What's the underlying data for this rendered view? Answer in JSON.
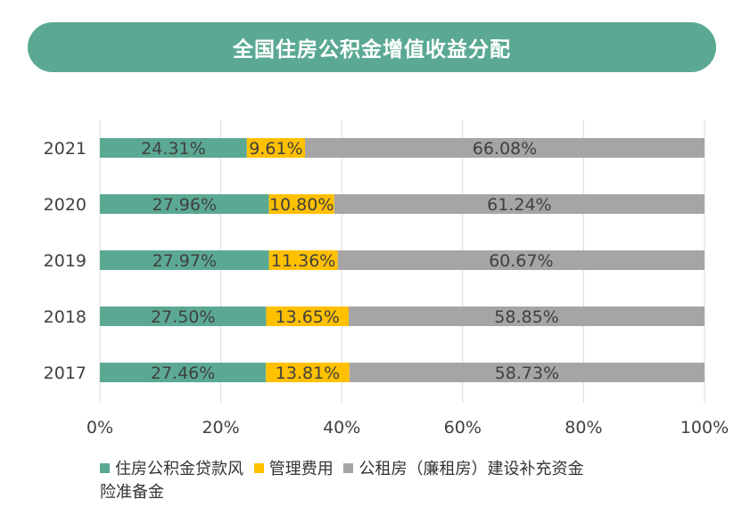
{
  "title": "全国住房公积金增值收益分配",
  "chart_data": {
    "type": "bar",
    "orientation": "horizontal",
    "stacked": true,
    "categories": [
      "2021",
      "2020",
      "2019",
      "2018",
      "2017"
    ],
    "series": [
      {
        "name": "住房公积金贷款风险准备金",
        "color": "#5ba993",
        "values": [
          24.31,
          27.96,
          27.97,
          27.5,
          27.46
        ],
        "labels": [
          "24.31%",
          "27.96%",
          "27.97%",
          "27.50%",
          "27.46%"
        ]
      },
      {
        "name": "管理费用",
        "color": "#ffc000",
        "values": [
          9.61,
          10.8,
          11.36,
          13.65,
          13.81
        ],
        "labels": [
          "9.61%",
          "10.80%",
          "11.36%",
          "13.65%",
          "13.81%"
        ]
      },
      {
        "name": "公租房（廉租房）建设补充资金",
        "color": "#a5a5a5",
        "values": [
          66.08,
          61.24,
          60.67,
          58.85,
          58.73
        ],
        "labels": [
          "66.08%",
          "61.24%",
          "60.67%",
          "58.85%",
          "58.73%"
        ]
      }
    ],
    "xlim": [
      0,
      100
    ],
    "xticks": [
      "0%",
      "20%",
      "40%",
      "60%",
      "80%",
      "100%"
    ],
    "grid": true,
    "legend_position": "bottom"
  },
  "legend": [
    {
      "label": "住房公积金贷款风",
      "color": "#5ba993"
    },
    {
      "label": "管理费用",
      "color": "#ffc000"
    },
    {
      "label": "公租房（廉租房）建设补充资金",
      "color": "#a5a5a5"
    }
  ],
  "legend_wrap": "险准备金"
}
